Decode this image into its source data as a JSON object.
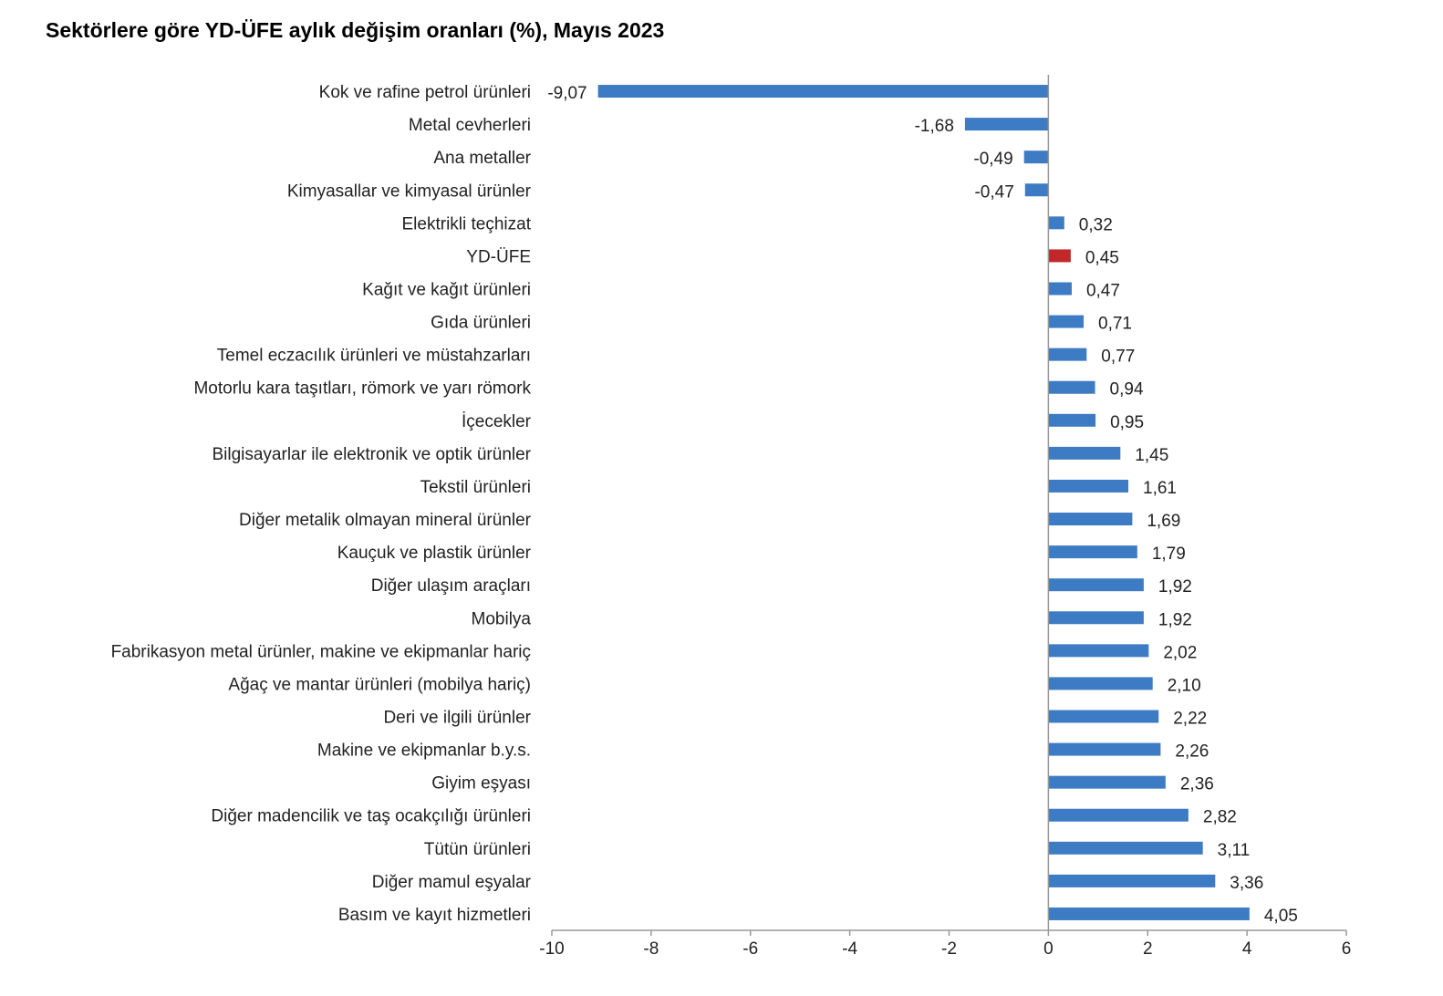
{
  "chart_data": {
    "type": "bar",
    "orientation": "horizontal",
    "title": "Sektörlere göre YD-ÜFE aylık değişim oranları (%), Mayıs 2023",
    "xlabel": "",
    "ylabel": "",
    "xlim": [
      -10,
      6
    ],
    "x_ticks": [
      -10,
      -8,
      -6,
      -4,
      -2,
      0,
      2,
      4,
      6
    ],
    "x_tick_labels": [
      "-10",
      "-8",
      "-6",
      "-4",
      "-2",
      "0",
      "2",
      "4",
      "6"
    ],
    "grid": false,
    "legend": "none",
    "bar_color": "#3d7cc4",
    "highlight_color": "#c0282a",
    "categories": [
      "Kok ve rafine petrol ürünleri",
      "Metal cevherleri",
      "Ana metaller",
      "Kimyasallar ve kimyasal ürünler",
      "Elektrikli teçhizat",
      "YD-ÜFE",
      "Kağıt ve kağıt ürünleri",
      "Gıda ürünleri",
      "Temel eczacılık ürünleri ve müstahzarları",
      "Motorlu kara taşıtları, römork ve yarı römork",
      "İçecekler",
      "Bilgisayarlar ile elektronik ve optik ürünler",
      "Tekstil ürünleri",
      "Diğer metalik olmayan mineral ürünler",
      "Kauçuk ve plastik ürünler",
      "Diğer ulaşım araçları",
      "Mobilya",
      "Fabrikasyon metal ürünler, makine ve ekipmanlar hariç",
      "Ağaç ve mantar ürünleri (mobilya hariç)",
      "Deri ve ilgili ürünler",
      "Makine ve ekipmanlar b.y.s.",
      "Giyim eşyası",
      "Diğer madencilik ve taş ocakçılığı ürünleri",
      "Tütün ürünleri",
      "Diğer mamul eşyalar",
      "Basım ve kayıt hizmetleri"
    ],
    "values": [
      -9.07,
      -1.68,
      -0.49,
      -0.47,
      0.32,
      0.45,
      0.47,
      0.71,
      0.77,
      0.94,
      0.95,
      1.45,
      1.61,
      1.69,
      1.79,
      1.92,
      1.92,
      2.02,
      2.1,
      2.22,
      2.26,
      2.36,
      2.82,
      3.11,
      3.36,
      4.05
    ],
    "value_labels": [
      "-9,07",
      "-1,68",
      "-0,49",
      "-0,47",
      "0,32",
      "0,45",
      "0,47",
      "0,71",
      "0,77",
      "0,94",
      "0,95",
      "1,45",
      "1,61",
      "1,69",
      "1,79",
      "1,92",
      "1,92",
      "2,02",
      "2,10",
      "2,22",
      "2,26",
      "2,36",
      "2,82",
      "3,11",
      "3,36",
      "4,05"
    ],
    "highlight_index": 5
  }
}
